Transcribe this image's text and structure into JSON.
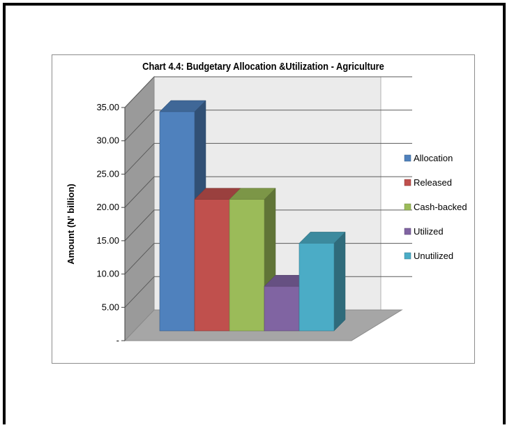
{
  "chart_data": {
    "type": "bar",
    "title": "Chart 4.4: Budgetary Allocation &Utilization - Agriculture",
    "ylabel": "Amount (N' billion)",
    "xlabel": "",
    "ylim": [
      0,
      35
    ],
    "y_ticks": [
      "-",
      "5.00",
      "10.00",
      "15.00",
      "20.00",
      "25.00",
      "30.00",
      "35.00"
    ],
    "grid": true,
    "legend_position": "right",
    "series": [
      {
        "name": "Allocation",
        "value": 32.0,
        "color": "#4f81bd"
      },
      {
        "name": "Released",
        "value": 19.2,
        "color": "#c0504d"
      },
      {
        "name": "Cash-backed",
        "value": 19.2,
        "color": "#9bbb59"
      },
      {
        "name": "Utilized",
        "value": 6.5,
        "color": "#8064a2"
      },
      {
        "name": "Unutilized",
        "value": 12.8,
        "color": "#4bacc6"
      }
    ]
  }
}
